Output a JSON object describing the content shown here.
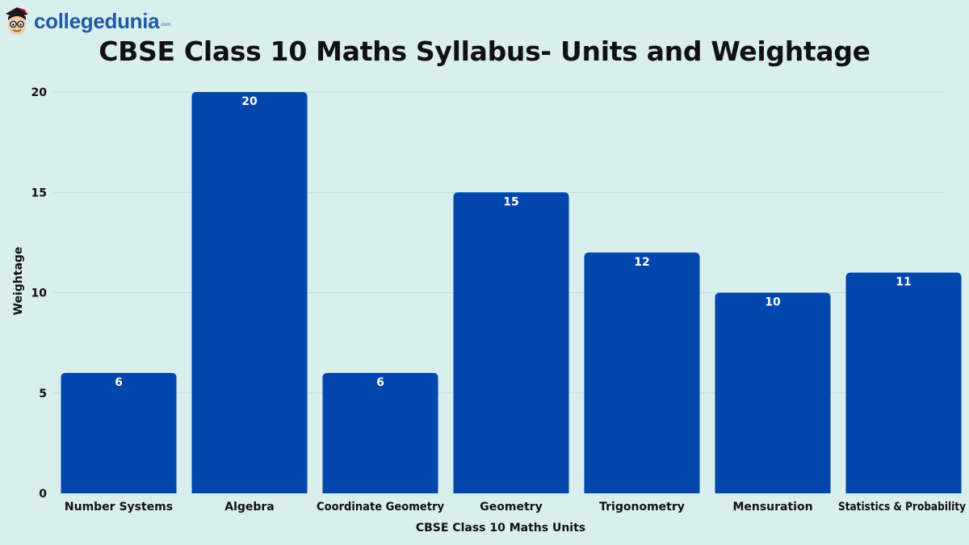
{
  "brand": {
    "name": "collegedunia",
    "suffix": ".com",
    "logo_icon": "mascot-face-icon"
  },
  "colors": {
    "background": "#d9eeee",
    "bar": "#0046ad",
    "bar_label": "#ffffff",
    "grid": "#c4dcdc",
    "text": "#111111",
    "brand": "#1f5aa8"
  },
  "chart_data": {
    "type": "bar",
    "title": "CBSE Class 10 Maths Syllabus- Units and Weightage",
    "xlabel": "CBSE Class 10 Maths Units",
    "ylabel": "Weightage",
    "categories": [
      "Number Systems",
      "Algebra",
      "Coordinate Geometry",
      "Geometry",
      "Trigonometry",
      "Mensuration",
      "Statistics & Probability"
    ],
    "values": [
      6,
      20,
      6,
      15,
      12,
      10,
      11
    ],
    "data_labels": [
      "6",
      "20",
      "6",
      "15",
      "12",
      "10",
      "11"
    ],
    "ylim": [
      0,
      20
    ],
    "yticks": [
      0,
      5,
      10,
      15,
      20
    ],
    "grid": true,
    "legend": "none"
  }
}
